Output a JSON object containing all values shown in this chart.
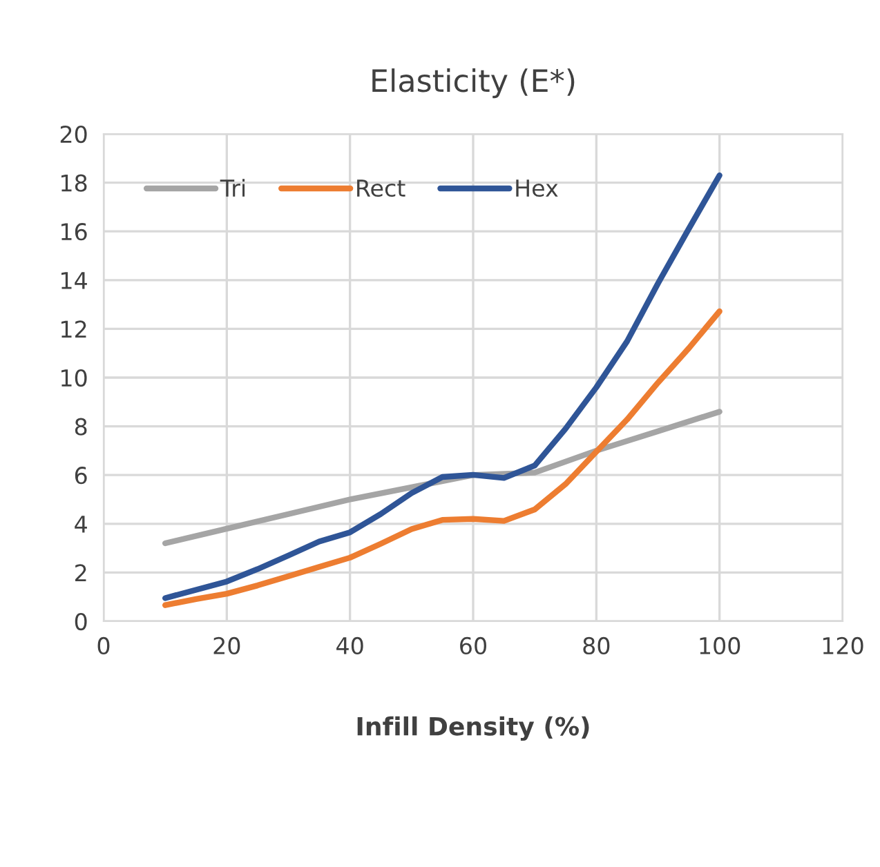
{
  "chart_data": {
    "type": "line",
    "title": "Elasticity (E*)",
    "xlabel": "Infill Density (%)",
    "xlim": [
      0,
      120
    ],
    "xticks": [
      0,
      20,
      40,
      60,
      80,
      100,
      120
    ],
    "ylim": [
      0,
      20
    ],
    "yticks": [
      0,
      2,
      4,
      6,
      8,
      10,
      12,
      14,
      16,
      18,
      20
    ],
    "grid": true,
    "legend": "top left",
    "marker": "none",
    "line_style": "solid",
    "series": [
      {
        "name": "Tri",
        "color": "#a5a5a5",
        "x": [
          10,
          20,
          30,
          40,
          50,
          60,
          70,
          80,
          90,
          100
        ],
        "values": [
          3.2,
          3.8,
          4.4,
          5.0,
          5.5,
          6.0,
          6.1,
          7.0,
          7.8,
          8.6
        ]
      },
      {
        "name": "Rect",
        "color": "#ed7d31",
        "x": [
          10,
          15,
          20,
          25,
          30,
          35,
          40,
          45,
          50,
          55,
          60,
          65,
          70,
          75,
          80,
          85,
          90,
          95,
          100
        ],
        "values": [
          0.66,
          0.91,
          1.13,
          1.47,
          1.85,
          2.23,
          2.61,
          3.18,
          3.78,
          4.16,
          4.2,
          4.12,
          4.59,
          5.63,
          6.96,
          8.28,
          9.79,
          11.2,
          12.72
        ]
      },
      {
        "name": "Hex",
        "color": "#2f5597",
        "x": [
          10,
          15,
          20,
          25,
          30,
          35,
          40,
          45,
          50,
          55,
          60,
          65,
          70,
          75,
          80,
          85,
          90,
          95,
          100
        ],
        "values": [
          0.95,
          1.29,
          1.63,
          2.14,
          2.7,
          3.27,
          3.65,
          4.4,
          5.26,
          5.92,
          6.01,
          5.88,
          6.39,
          7.9,
          9.6,
          11.49,
          13.86,
          16.1,
          18.3
        ]
      }
    ]
  }
}
